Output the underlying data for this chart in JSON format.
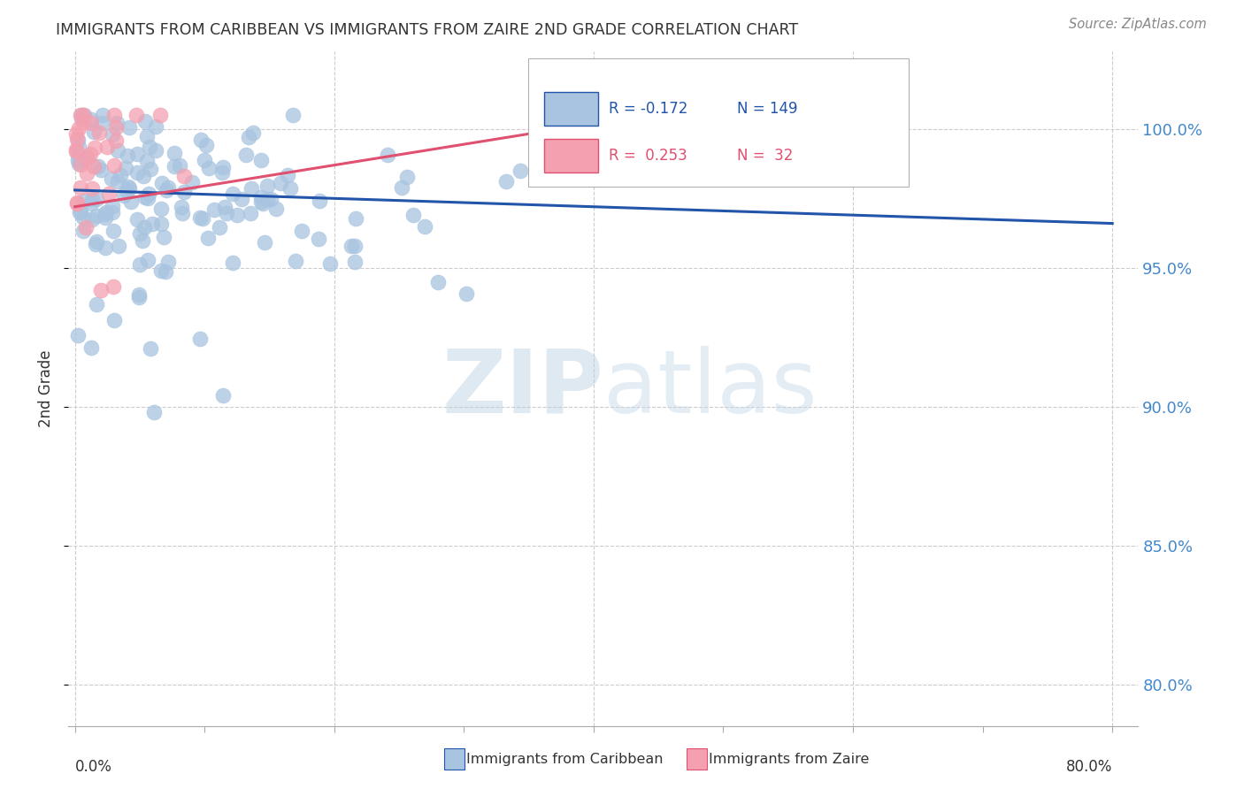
{
  "title": "IMMIGRANTS FROM CARIBBEAN VS IMMIGRANTS FROM ZAIRE 2ND GRADE CORRELATION CHART",
  "source_text": "Source: ZipAtlas.com",
  "ylabel": "2nd Grade",
  "ytick_labels": [
    "100.0%",
    "95.0%",
    "90.0%",
    "85.0%",
    "80.0%"
  ],
  "ytick_values": [
    1.0,
    0.95,
    0.9,
    0.85,
    0.8
  ],
  "xlim": [
    -0.005,
    0.82
  ],
  "ylim": [
    0.785,
    1.028
  ],
  "blue_R": "-0.172",
  "blue_N": "149",
  "pink_R": "0.253",
  "pink_N": "32",
  "blue_color": "#a8c4e0",
  "pink_color": "#f4a0b0",
  "blue_line_color": "#2255aa",
  "pink_line_color": "#e05070",
  "legend_blue_label": "Immigrants from Caribbean",
  "legend_pink_label": "Immigrants from Zaire",
  "watermark_zip": "ZIP",
  "watermark_atlas": "atlas",
  "grid_color": "#cccccc",
  "title_color": "#333333",
  "right_tick_color": "#4488cc",
  "source_color": "#888888"
}
